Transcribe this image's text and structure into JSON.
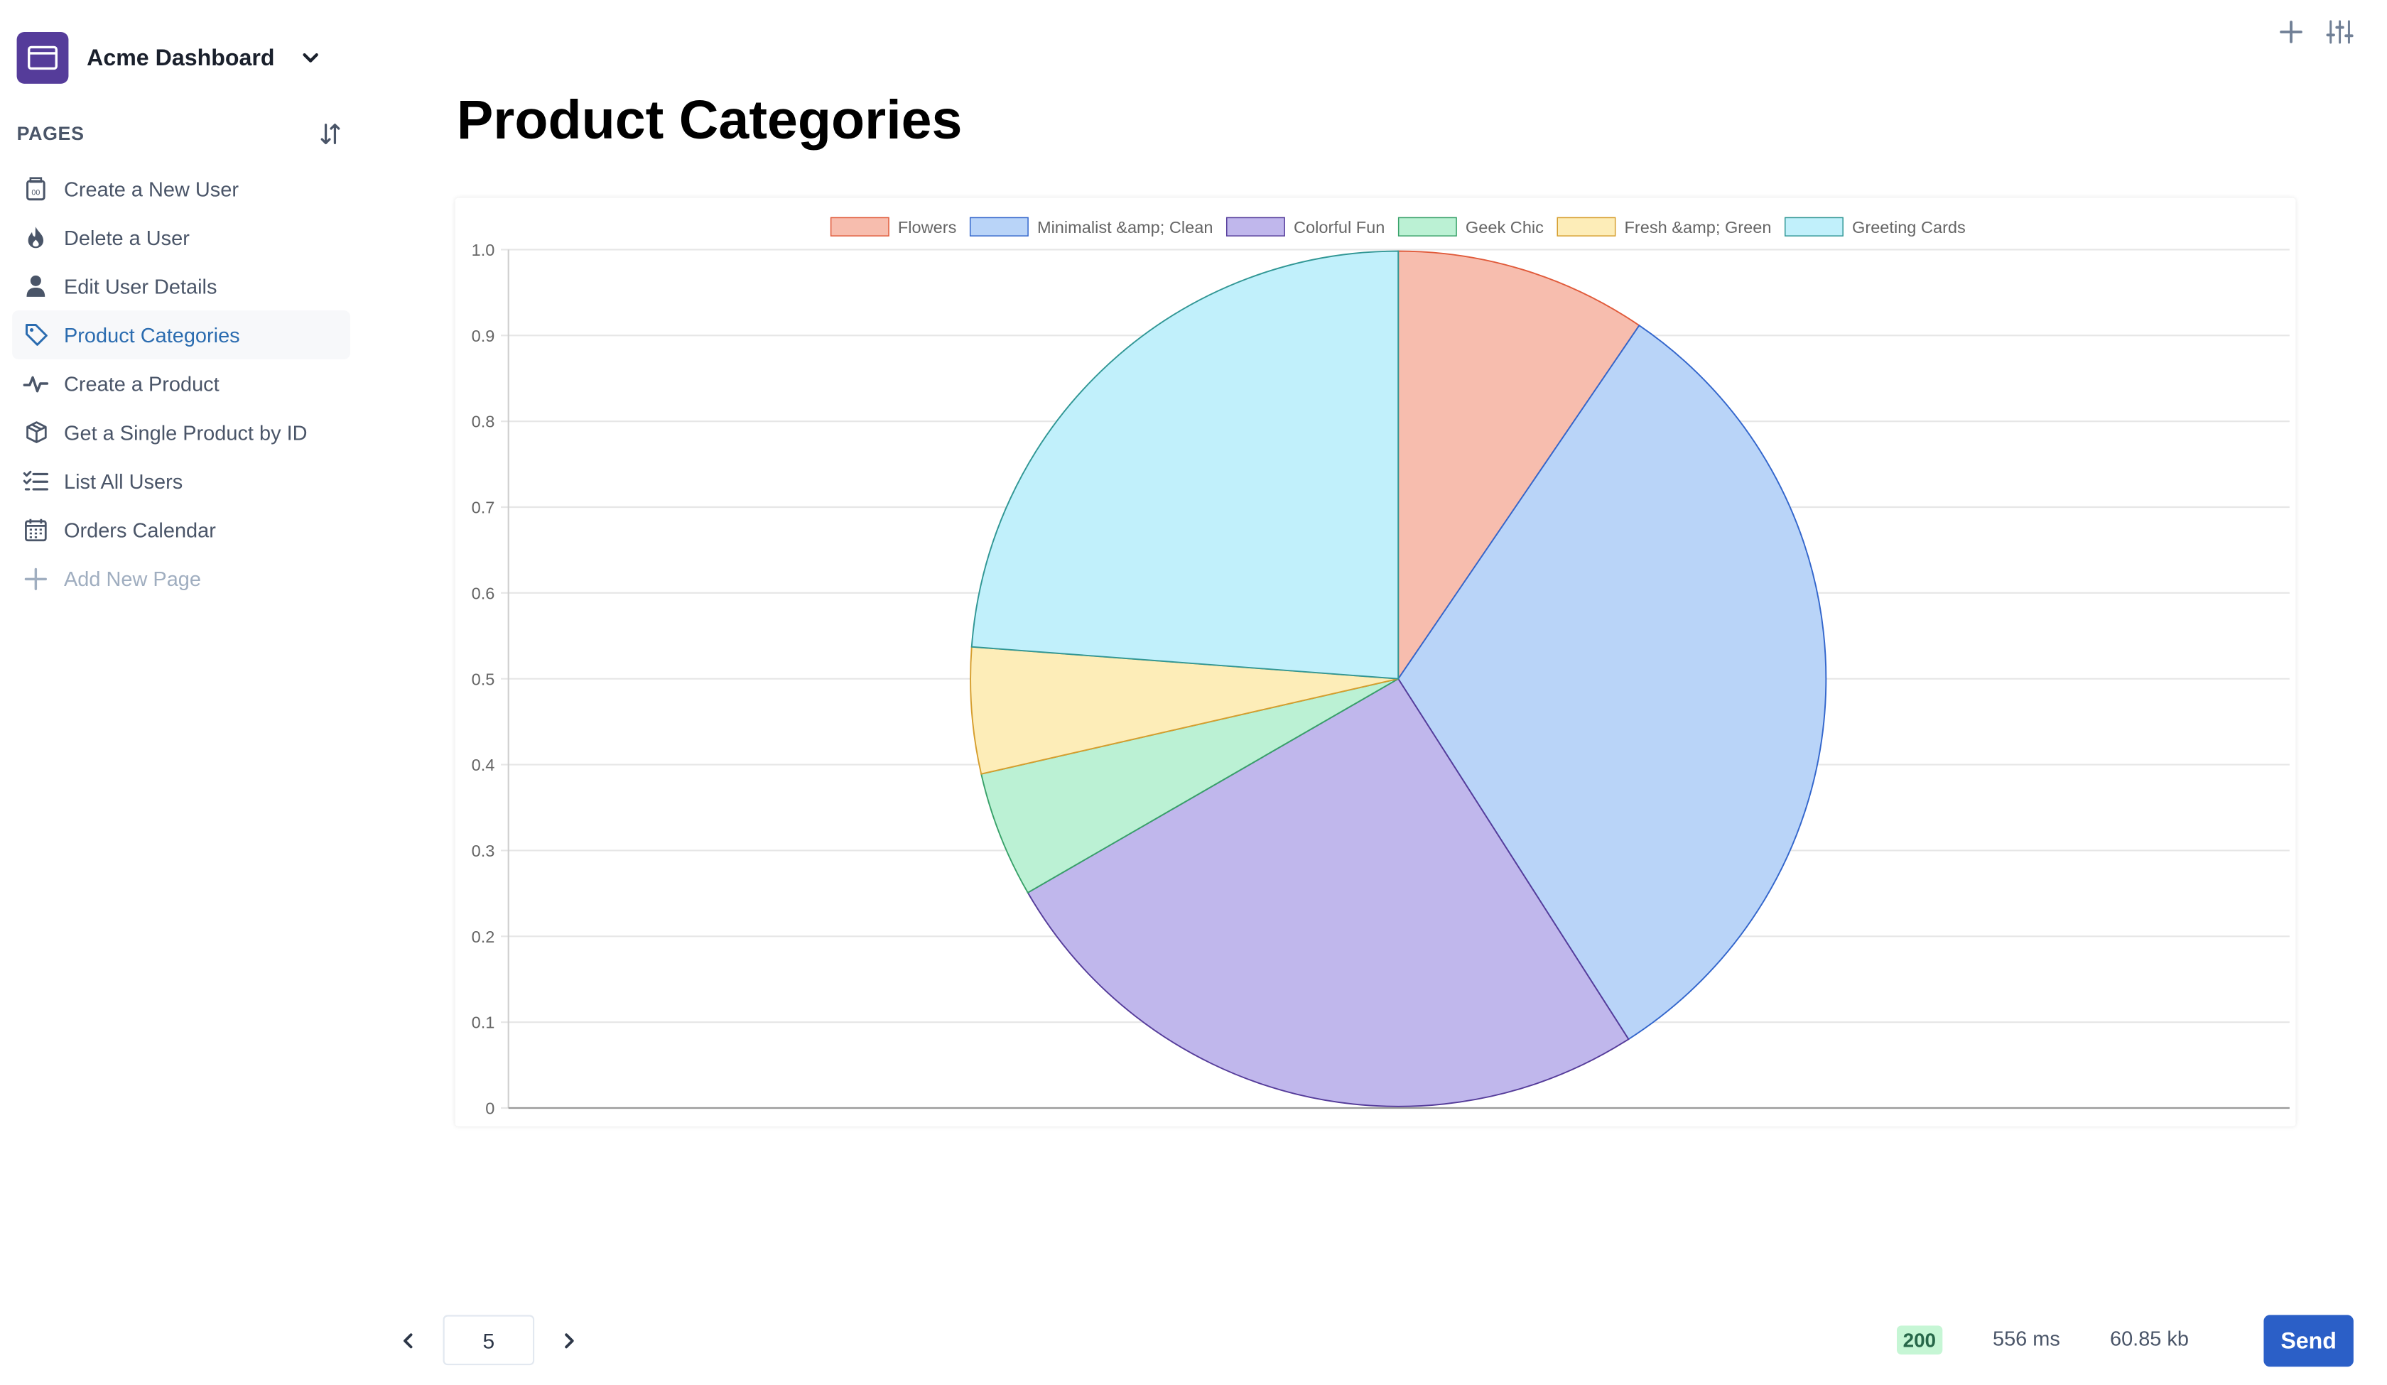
{
  "app": {
    "title": "Acme Dashboard"
  },
  "sidebar": {
    "section_label": "PAGES",
    "items": [
      {
        "label": "Create a New User",
        "icon": "jar-icon",
        "active": false
      },
      {
        "label": "Delete a User",
        "icon": "fire-icon",
        "active": false
      },
      {
        "label": "Edit User Details",
        "icon": "user-icon",
        "active": false
      },
      {
        "label": "Product Categories",
        "icon": "tag-icon",
        "active": true
      },
      {
        "label": "Create a Product",
        "icon": "pulse-icon",
        "active": false
      },
      {
        "label": "Get a Single Product by ID",
        "icon": "box-icon",
        "active": false
      },
      {
        "label": "List All Users",
        "icon": "checklist-icon",
        "active": false
      },
      {
        "label": "Orders Calendar",
        "icon": "calendar-icon",
        "active": false
      }
    ],
    "add_label": "Add New Page"
  },
  "main": {
    "title": "Product Categories"
  },
  "chart_data": {
    "type": "pie",
    "categories": [
      "Flowers",
      "Minimalist &amp; Clean",
      "Colorful Fun",
      "Geek Chic",
      "Fresh &amp; Green",
      "Greeting Cards"
    ],
    "values": [
      10,
      33,
      27,
      5,
      5,
      25
    ],
    "colors": [
      "#f7bdae",
      "#b9d4f8",
      "#c0b7ec",
      "#bbf1d4",
      "#fdedb8",
      "#c1f0fb"
    ],
    "borders": [
      "#e05a3a",
      "#3366cc",
      "#553c9a",
      "#38a169",
      "#d69e2e",
      "#319795"
    ],
    "y_ticks": [
      "1.0",
      "0.9",
      "0.8",
      "0.7",
      "0.6",
      "0.5",
      "0.4",
      "0.3",
      "0.2",
      "0.1",
      "0"
    ],
    "ylim": [
      0,
      1
    ],
    "grid": true,
    "legend_position": "top"
  },
  "footer": {
    "page": "5",
    "status": "200",
    "time": "556 ms",
    "size": "60.85 kb",
    "send_label": "Send"
  },
  "theme": {
    "accent": "#2b5fc7",
    "brand": "#553c9a",
    "active_text": "#2b6cb0"
  }
}
